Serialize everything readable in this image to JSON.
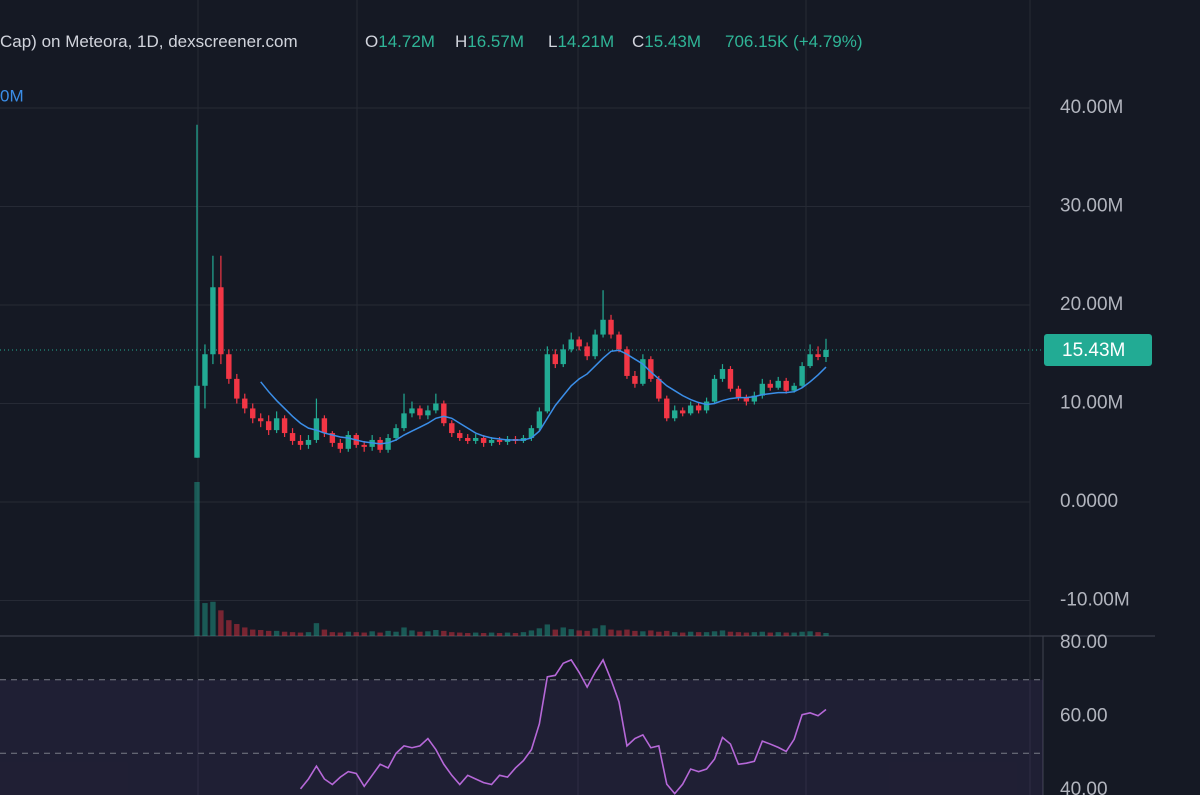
{
  "chart_data": {
    "type": "candlestick",
    "legend": {
      "source": "Cap) on Meteora, 1D, dexscreener.com",
      "ohlc": [
        {
          "key": "O",
          "text": "14.72M"
        },
        {
          "key": "H",
          "text": "16.57M"
        },
        {
          "key": "L",
          "text": "14.21M"
        },
        {
          "key": "C",
          "text": "15.43M"
        }
      ],
      "change": "706.15K (+4.79%)",
      "ma_label": "0M"
    },
    "up_color": "#22ab94",
    "down_color": "#f23645",
    "grid": true,
    "ylim": [
      -13.6,
      50.96
    ],
    "yticks": [
      {
        "value": 40,
        "label": "40.00M"
      },
      {
        "value": 30,
        "label": "30.00M"
      },
      {
        "value": 20,
        "label": "20.00M"
      },
      {
        "value": 10,
        "label": "10.00M"
      },
      {
        "value": 0,
        "label": "0.0000"
      },
      {
        "value": -10,
        "label": "-10.00M"
      }
    ],
    "last_price": {
      "value": 15.43,
      "label": "15.43M"
    },
    "open": [
      4.5,
      11.8,
      15,
      21.8,
      15,
      12.5,
      10.5,
      9.5,
      8.5,
      8.2,
      7.3,
      8.5,
      7.0,
      6.2,
      5.8,
      6.3,
      8.5,
      7.0,
      6.0,
      5.4,
      6.8,
      5.8,
      5.6,
      6.3,
      5.3,
      6.5,
      7.5,
      9.0,
      9.5,
      8.8,
      9.3,
      10.0,
      8.0,
      7.0,
      6.5,
      6.2,
      6.5,
      6.0,
      6.3,
      6.1,
      6.4,
      6.2,
      6.5,
      7.5,
      9.2,
      15.0,
      14.0,
      15.5,
      16.5,
      15.8,
      14.8,
      17.0,
      18.5,
      17.0,
      15.5,
      12.8,
      12.0,
      14.5,
      12.5,
      10.5,
      8.5,
      9.3,
      9.0,
      9.8,
      9.3,
      10.2,
      12.5,
      13.5,
      11.5,
      10.6,
      10.2,
      10.8,
      12.0,
      11.6,
      12.3,
      11.3,
      11.8,
      13.8,
      15.0,
      14.72
    ],
    "high": [
      38.3,
      16.0,
      25.0,
      25.0,
      15.5,
      13.0,
      11.0,
      10.0,
      9.0,
      8.8,
      9.2,
      8.8,
      7.5,
      6.8,
      6.8,
      10.5,
      8.8,
      7.2,
      6.4,
      7.2,
      7.0,
      6.2,
      6.8,
      6.6,
      6.9,
      7.9,
      11.0,
      10.2,
      9.8,
      9.8,
      11.0,
      10.3,
      8.3,
      7.3,
      6.9,
      6.9,
      6.8,
      6.6,
      6.6,
      6.7,
      6.7,
      6.8,
      7.8,
      9.6,
      15.8,
      15.5,
      16.0,
      17.2,
      16.8,
      16.2,
      17.5,
      21.5,
      19.0,
      17.3,
      15.8,
      13.3,
      15.0,
      14.8,
      12.8,
      10.8,
      9.8,
      9.6,
      10.2,
      10.1,
      10.6,
      12.9,
      14.0,
      13.8,
      11.8,
      10.9,
      11.2,
      12.5,
      12.4,
      12.7,
      12.6,
      12.1,
      14.2,
      16.0,
      15.8,
      16.57
    ],
    "low": [
      4.5,
      9.5,
      14.0,
      14.0,
      12.0,
      10.0,
      9.0,
      8.0,
      7.6,
      6.8,
      7.0,
      6.6,
      5.8,
      5.3,
      5.4,
      6.0,
      6.6,
      5.6,
      5.0,
      5.1,
      5.5,
      5.1,
      5.2,
      5.0,
      5.0,
      6.2,
      7.2,
      8.6,
      8.4,
      8.4,
      9.0,
      7.7,
      6.6,
      6.2,
      5.9,
      5.9,
      5.6,
      5.7,
      5.8,
      5.8,
      5.9,
      6.0,
      6.2,
      7.2,
      9.0,
      13.6,
      13.7,
      15.2,
      15.4,
      14.4,
      14.5,
      16.7,
      16.6,
      15.2,
      12.5,
      11.6,
      11.8,
      12.2,
      10.2,
      8.2,
      8.2,
      8.7,
      8.8,
      9.0,
      9.0,
      10.0,
      12.2,
      11.2,
      10.3,
      9.8,
      9.9,
      10.5,
      11.3,
      11.4,
      11.0,
      11.1,
      11.6,
      13.6,
      14.4,
      14.21
    ],
    "close": [
      11.8,
      15,
      21.8,
      15,
      12.5,
      10.5,
      9.5,
      8.5,
      8.2,
      7.3,
      8.5,
      7.0,
      6.2,
      5.8,
      6.3,
      8.5,
      7.0,
      6.0,
      5.4,
      6.8,
      5.8,
      5.6,
      6.3,
      5.3,
      6.5,
      7.5,
      9.0,
      9.5,
      8.8,
      9.3,
      10.0,
      8.0,
      7.0,
      6.5,
      6.2,
      6.5,
      6.0,
      6.3,
      6.1,
      6.4,
      6.2,
      6.5,
      7.5,
      9.2,
      15.0,
      14.0,
      15.5,
      16.5,
      15.8,
      14.8,
      17.0,
      18.5,
      17.0,
      15.5,
      12.8,
      12.0,
      14.5,
      12.5,
      10.5,
      8.5,
      9.3,
      9.0,
      9.8,
      9.3,
      10.2,
      12.5,
      13.5,
      11.5,
      10.6,
      10.2,
      10.8,
      12.0,
      11.6,
      12.3,
      11.3,
      11.8,
      13.8,
      15.0,
      14.72,
      15.43
    ],
    "volume": [
      36000,
      7700,
      8000,
      6000,
      3700,
      2800,
      2000,
      1500,
      1400,
      1200,
      1200,
      1000,
      900,
      800,
      900,
      3000,
      1500,
      900,
      800,
      1000,
      900,
      800,
      1100,
      800,
      1200,
      1000,
      2000,
      1300,
      1000,
      1100,
      1400,
      1200,
      900,
      800,
      700,
      800,
      700,
      800,
      700,
      800,
      700,
      900,
      1300,
      1800,
      2700,
      1500,
      2000,
      1600,
      1300,
      1200,
      1800,
      2500,
      1500,
      1300,
      1500,
      1200,
      1100,
      1300,
      1000,
      1200,
      900,
      800,
      1000,
      900,
      900,
      1100,
      1300,
      1000,
      900,
      800,
      900,
      1000,
      800,
      900,
      800,
      800,
      1000,
      1100,
      900,
      706.15
    ],
    "ma": {
      "color": "#3b8ee8",
      "values": [
        null,
        null,
        null,
        null,
        null,
        null,
        null,
        null,
        12.2,
        11.2,
        10.3,
        9.5,
        8.7,
        8.0,
        7.5,
        7.3,
        7.0,
        6.8,
        6.6,
        6.5,
        6.3,
        6.1,
        6.0,
        5.9,
        6.0,
        6.3,
        6.8,
        7.2,
        7.6,
        8.0,
        8.5,
        8.7,
        8.5,
        8.0,
        7.5,
        7.0,
        6.7,
        6.5,
        6.4,
        6.3,
        6.3,
        6.3,
        6.5,
        7.2,
        8.5,
        9.8,
        10.8,
        11.8,
        12.5,
        13.0,
        13.8,
        14.6,
        15.3,
        15.4,
        15.0,
        14.5,
        14.0,
        13.2,
        12.5,
        11.8,
        11.3,
        10.8,
        10.4,
        10.1,
        9.9,
        10.0,
        10.3,
        10.5,
        10.6,
        10.6,
        10.7,
        10.9,
        11.0,
        11.1,
        11.1,
        11.2,
        11.6,
        12.2,
        12.9,
        13.7
      ]
    },
    "rsi": {
      "color": "#b668d8",
      "ylim": [
        38.64,
        81.36
      ],
      "yticks": [
        {
          "value": 80,
          "label": "80.00"
        },
        {
          "value": 60,
          "label": "60.00"
        },
        {
          "value": 40,
          "label": "40.00"
        }
      ],
      "bands": [
        70,
        50
      ],
      "values": [
        null,
        null,
        null,
        null,
        null,
        null,
        null,
        null,
        null,
        null,
        null,
        null,
        null,
        40.3,
        43,
        46.5,
        43,
        41.5,
        43.5,
        45,
        44.5,
        41,
        44,
        47,
        46,
        50,
        52,
        51.5,
        52,
        54,
        51,
        47,
        44,
        41.5,
        44,
        43,
        42,
        41.5,
        44,
        43.5,
        46,
        48,
        51,
        58,
        70.8,
        71.2,
        74.5,
        75.4,
        72,
        68,
        72,
        75.4,
        70,
        64,
        52,
        54,
        55,
        51.5,
        52,
        41.6,
        39,
        41.6,
        45.7,
        45,
        45.7,
        48.4,
        54.3,
        52.5,
        47,
        47.3,
        47.8,
        53.3,
        52.5,
        51.6,
        50.5,
        53.8,
        60.5,
        61,
        60.2,
        61.9
      ]
    }
  }
}
